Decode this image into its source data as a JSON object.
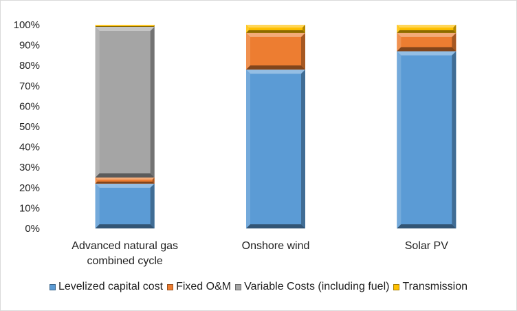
{
  "chart_data": {
    "type": "bar",
    "stacked": true,
    "percent": true,
    "categories": [
      "Advanced natural gas combined cycle",
      "Onshore wind",
      "Solar PV"
    ],
    "category_lines": [
      [
        "Advanced natural gas",
        "combined cycle"
      ],
      [
        "Onshore wind"
      ],
      [
        "Solar PV"
      ]
    ],
    "series": [
      {
        "name": "Levelized capital cost",
        "values": [
          22,
          78,
          87
        ],
        "color": "#5b9bd5"
      },
      {
        "name": "Fixed O&M",
        "values": [
          3,
          18,
          9
        ],
        "color": "#ed7d31"
      },
      {
        "name": "Variable Costs (including fuel)",
        "values": [
          74,
          0,
          0
        ],
        "color": "#a5a5a5"
      },
      {
        "name": "Transmission",
        "values": [
          1,
          4,
          4
        ],
        "color": "#ffc000"
      }
    ],
    "yticks": [
      "0%",
      "10%",
      "20%",
      "30%",
      "40%",
      "50%",
      "60%",
      "70%",
      "80%",
      "90%",
      "100%"
    ],
    "ylim": [
      0,
      100
    ],
    "grid": false,
    "legend_position": "bottom"
  }
}
